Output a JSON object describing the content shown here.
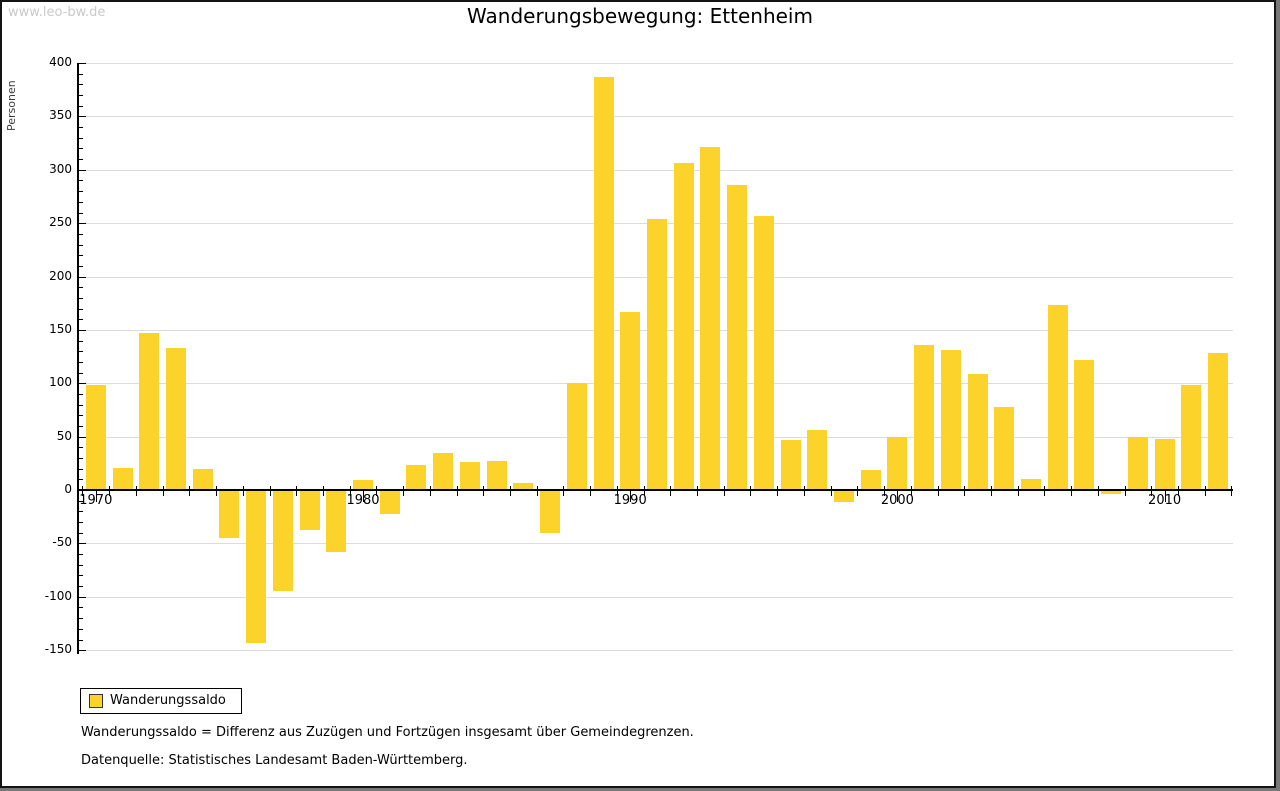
{
  "watermark": "www.leo-bw.de",
  "header": {
    "title": "Wanderungsbewegung: Ettenheim"
  },
  "chart_data": {
    "type": "bar",
    "title": "Wanderungsbewegung: Ettenheim",
    "ylabel": "Personen",
    "xlabel": "",
    "x": [
      1970,
      1971,
      1972,
      1973,
      1974,
      1975,
      1976,
      1977,
      1978,
      1979,
      1980,
      1981,
      1982,
      1983,
      1984,
      1985,
      1986,
      1987,
      1988,
      1989,
      1990,
      1991,
      1992,
      1993,
      1994,
      1995,
      1996,
      1997,
      1998,
      1999,
      2000,
      2001,
      2002,
      2003,
      2004,
      2005,
      2006,
      2007,
      2008,
      2009,
      2010,
      2011,
      2012
    ],
    "values": [
      98,
      21,
      147,
      133,
      20,
      -45,
      -143,
      -95,
      -37,
      -58,
      9,
      -22,
      23,
      35,
      26,
      27,
      7,
      -40,
      100,
      387,
      167,
      254,
      306,
      321,
      286,
      257,
      47,
      56,
      -11,
      19,
      50,
      136,
      131,
      109,
      78,
      10,
      173,
      122,
      -4,
      50,
      48,
      98,
      128
    ],
    "series_name": "Wanderungssaldo",
    "ylim": [
      -150,
      400
    ],
    "ytick_step": 50,
    "ytick_minor_step": 10,
    "xtick_labels": [
      1970,
      1980,
      1990,
      2000,
      2010
    ],
    "grid": "horizontal-major",
    "legend_position": "bottom-left",
    "bar_color": "#FBD32B",
    "grid_color": "#DCDCDC",
    "axis_color": "#000000"
  },
  "legend": {
    "label": "Wanderungssaldo",
    "swatch_color": "#FBD32B"
  },
  "footnotes": [
    "Wanderungssaldo = Differenz aus Zuzügen und Fortzügen insgesamt über Gemeindegrenzen.",
    "Datenquelle: Statistisches Landesamt Baden-Württemberg."
  ]
}
